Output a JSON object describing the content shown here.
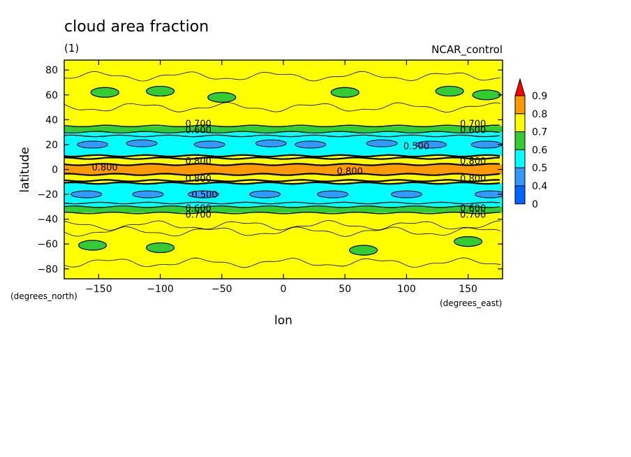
{
  "chart_data": {
    "type": "heatmap",
    "title": "cloud area fraction",
    "subtitle": "(1)",
    "source_label": "NCAR_control",
    "xlabel": "lon",
    "ylabel": "latitude",
    "x_units": "(degrees_east)",
    "y_units": "(degrees_north)",
    "xlim": [
      -178,
      178
    ],
    "ylim": [
      -88,
      88
    ],
    "x_ticks": [
      {
        "value": -150,
        "label": "−150"
      },
      {
        "value": -100,
        "label": "−100"
      },
      {
        "value": -50,
        "label": "−50"
      },
      {
        "value": 0,
        "label": "0"
      },
      {
        "value": 50,
        "label": "50"
      },
      {
        "value": 100,
        "label": "100"
      },
      {
        "value": 150,
        "label": "150"
      }
    ],
    "y_ticks": [
      {
        "value": 80,
        "label": "80"
      },
      {
        "value": 60,
        "label": "60"
      },
      {
        "value": 40,
        "label": "40"
      },
      {
        "value": 20,
        "label": "20"
      },
      {
        "value": 0,
        "label": "0"
      },
      {
        "value": -20,
        "label": "−20"
      },
      {
        "value": -40,
        "label": "−40"
      },
      {
        "value": -60,
        "label": "−60"
      },
      {
        "value": -80,
        "label": "−80"
      }
    ],
    "colorbar": {
      "levels": [
        {
          "from": 0.0,
          "to": 0.4,
          "color": "#0066ff"
        },
        {
          "from": 0.4,
          "to": 0.5,
          "color": "#3399ff"
        },
        {
          "from": 0.5,
          "to": 0.6,
          "color": "#00ffff"
        },
        {
          "from": 0.6,
          "to": 0.7,
          "color": "#33cc33"
        },
        {
          "from": 0.7,
          "to": 0.8,
          "color": "#ffff00"
        },
        {
          "from": 0.8,
          "to": 0.9,
          "color": "#ff9900"
        }
      ],
      "overflow_color": "#ff0000",
      "tick_labels": [
        "0",
        "0.4",
        "0.5",
        "0.6",
        "0.7",
        "0.8",
        "0.9"
      ]
    },
    "zonal_bands": [
      {
        "lat_from": 35,
        "lat_to": 88,
        "value": 0.72
      },
      {
        "lat_from": 30,
        "lat_to": 35,
        "value": 0.65
      },
      {
        "lat_from": 27,
        "lat_to": 30,
        "value": 0.55
      },
      {
        "lat_from": 11,
        "lat_to": 27,
        "value": 0.52
      },
      {
        "lat_from": 9,
        "lat_to": 11,
        "value": 0.72
      },
      {
        "lat_from": 4,
        "lat_to": 9,
        "value": 0.78
      },
      {
        "lat_from": -4,
        "lat_to": 4,
        "value": 0.82
      },
      {
        "lat_from": -9,
        "lat_to": -4,
        "value": 0.78
      },
      {
        "lat_from": -11,
        "lat_to": -9,
        "value": 0.72
      },
      {
        "lat_from": -27,
        "lat_to": -11,
        "value": 0.52
      },
      {
        "lat_from": -30,
        "lat_to": -27,
        "value": 0.55
      },
      {
        "lat_from": -35,
        "lat_to": -30,
        "value": 0.65
      },
      {
        "lat_from": -88,
        "lat_to": -35,
        "value": 0.72
      }
    ],
    "low_cloud_patches": [
      {
        "lon": 22,
        "lat": 20,
        "value": 0.45
      },
      {
        "lon": -155,
        "lat": 20,
        "value": 0.45
      },
      {
        "lon": -115,
        "lat": 21,
        "value": 0.45
      },
      {
        "lon": -60,
        "lat": 20,
        "value": 0.45
      },
      {
        "lon": -10,
        "lat": 21,
        "value": 0.45
      },
      {
        "lon": 80,
        "lat": 21,
        "value": 0.45
      },
      {
        "lon": 120,
        "lat": 20,
        "value": 0.45
      },
      {
        "lon": 165,
        "lat": 20,
        "value": 0.45
      },
      {
        "lon": -160,
        "lat": -20,
        "value": 0.45
      },
      {
        "lon": -110,
        "lat": -20,
        "value": 0.45
      },
      {
        "lon": -65,
        "lat": -20,
        "value": 0.45
      },
      {
        "lon": -15,
        "lat": -20,
        "value": 0.45
      },
      {
        "lon": 40,
        "lat": -20,
        "value": 0.45
      },
      {
        "lon": 100,
        "lat": -20,
        "value": 0.45
      },
      {
        "lon": 168,
        "lat": -20,
        "value": 0.45
      }
    ],
    "green_patches": [
      {
        "lon": -145,
        "lat": 62,
        "value": 0.65
      },
      {
        "lon": -100,
        "lat": 63,
        "value": 0.65
      },
      {
        "lon": -50,
        "lat": 58,
        "value": 0.65
      },
      {
        "lon": 50,
        "lat": 62,
        "value": 0.65
      },
      {
        "lon": 135,
        "lat": 63,
        "value": 0.65
      },
      {
        "lon": 165,
        "lat": 60,
        "value": 0.65
      },
      {
        "lon": -155,
        "lat": -61,
        "value": 0.65
      },
      {
        "lon": -100,
        "lat": -63,
        "value": 0.65
      },
      {
        "lon": 65,
        "lat": -65,
        "value": 0.65
      },
      {
        "lon": 150,
        "lat": -58,
        "value": 0.65
      }
    ],
    "contour_labels": [
      {
        "lon": -69,
        "lat": 37,
        "text": "0.700"
      },
      {
        "lon": -69,
        "lat": 32,
        "text": "0.600"
      },
      {
        "lon": 154,
        "lat": 37,
        "text": "0.700"
      },
      {
        "lon": 154,
        "lat": 32,
        "text": "0.600"
      },
      {
        "lon": 108,
        "lat": 19,
        "text": "0.500"
      },
      {
        "lon": -145,
        "lat": 2,
        "text": "0.800"
      },
      {
        "lon": 54,
        "lat": -1,
        "text": "0.800"
      },
      {
        "lon": -69,
        "lat": 7,
        "text": "0.800"
      },
      {
        "lon": -69,
        "lat": -7,
        "text": "0.800"
      },
      {
        "lon": 154,
        "lat": 7,
        "text": "0.800"
      },
      {
        "lon": 154,
        "lat": -7,
        "text": "0.800"
      },
      {
        "lon": -64,
        "lat": -20,
        "text": "0.500"
      },
      {
        "lon": -69,
        "lat": -31,
        "text": "0.600"
      },
      {
        "lon": -69,
        "lat": -36,
        "text": "0.700"
      },
      {
        "lon": 154,
        "lat": -31,
        "text": "0.600"
      },
      {
        "lon": 154,
        "lat": -36,
        "text": "0.700"
      }
    ]
  }
}
